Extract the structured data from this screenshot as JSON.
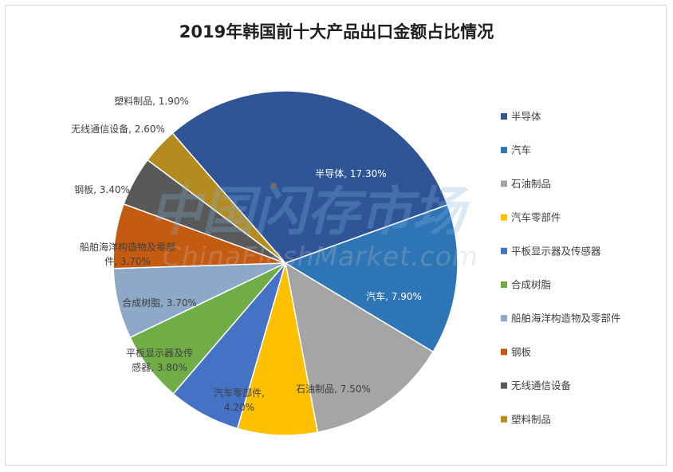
{
  "chart_data": {
    "type": "pie",
    "title": "2019年韩国前十大产品出口金额占比情况",
    "slices": [
      {
        "name": "半导体",
        "value": 17.3,
        "label": [
          "半导体, 17.30%"
        ],
        "color": "#2F5597"
      },
      {
        "name": "汽车",
        "value": 7.9,
        "label": [
          "汽车, 7.90%"
        ],
        "color": "#2E75B6"
      },
      {
        "name": "石油制品",
        "value": 7.5,
        "label": [
          "石油制品, 7.50%"
        ],
        "color": "#A5A5A5"
      },
      {
        "name": "汽车零部件",
        "value": 4.2,
        "label": [
          "汽车零部件,",
          "4.20%"
        ],
        "color": "#FFC000"
      },
      {
        "name": "平板显示器及传感器",
        "value": 3.8,
        "label": [
          "平板显示器及传",
          "感器, 3.80%"
        ],
        "color": "#4472C4"
      },
      {
        "name": "合成树脂",
        "value": 3.7,
        "label": [
          "合成树脂, 3.70%"
        ],
        "color": "#70AD47"
      },
      {
        "name": "船舶海洋构造物及零部件",
        "value": 3.7,
        "label": [
          "船舶海洋构造物及零部",
          "件, 3.70%"
        ],
        "color": "#8EA9C8"
      },
      {
        "name": "钢板",
        "value": 3.4,
        "label": [
          "钢板, 3.40%"
        ],
        "color": "#C55A11"
      },
      {
        "name": "无线通信设备",
        "value": 2.6,
        "label": [
          "无线通信设备, 2.60%"
        ],
        "color": "#595959"
      },
      {
        "name": "塑料制品",
        "value": 1.9,
        "label": [
          "塑料制品, 1.90%"
        ],
        "color": "#B58B20"
      }
    ],
    "legend_position": "right"
  },
  "watermark": {
    "text_cn": "中国闪存市场",
    "text_en": "ChinaFlashMarket.com"
  }
}
